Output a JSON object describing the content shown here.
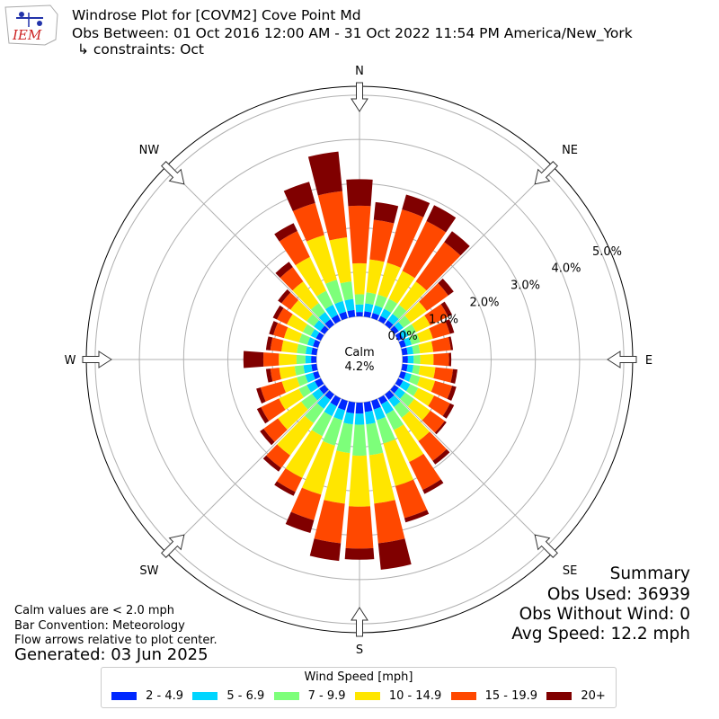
{
  "title": {
    "line1": "Windrose Plot for [COVM2] Cove Point  Md",
    "line2": "Obs Between: 01 Oct 2016 12:00 AM - 31 Oct 2022 11:54 PM America/New_York",
    "line3": "↳ constraints: Oct"
  },
  "logo_text": "IEM",
  "calm": {
    "label": "Calm",
    "value": "4.2%"
  },
  "summary": {
    "heading": "Summary",
    "obs_used": "Obs Used: 36939",
    "obs_without_wind": "Obs Without Wind: 0",
    "avg_speed": "Avg Speed: 12.2 mph"
  },
  "notes": {
    "calm_note": "Calm values are < 2.0 mph",
    "bar_convention": "Bar Convention: Meteorology",
    "flow_arrows": "Flow arrows relative to plot center."
  },
  "generated": "Generated: 03 Jun 2025",
  "legend": {
    "title": "Wind Speed [mph]",
    "items": [
      {
        "label": "2 - 4.9",
        "color": "#0028ff"
      },
      {
        "label": "5 - 6.9",
        "color": "#00d5ff"
      },
      {
        "label": "7 - 9.9",
        "color": "#7dff7a"
      },
      {
        "label": "10 - 14.9",
        "color": "#ffe600"
      },
      {
        "label": "15 - 19.9",
        "color": "#ff4800"
      },
      {
        "label": "20+",
        "color": "#800000"
      }
    ]
  },
  "chart_data": {
    "type": "windrose",
    "calm_percent": 4.2,
    "r_max_percent": 5.2,
    "ring_ticks": [
      "0.0%",
      "1.0%",
      "2.0%",
      "3.0%",
      "4.0%",
      "5.0%"
    ],
    "ring_values": [
      0,
      1,
      2,
      3,
      4,
      5
    ],
    "direction_labels": [
      "N",
      "NE",
      "E",
      "SE",
      "S",
      "SW",
      "W",
      "NW"
    ],
    "directions_deg": [
      0,
      10,
      20,
      30,
      40,
      50,
      60,
      70,
      80,
      90,
      100,
      110,
      120,
      130,
      140,
      150,
      160,
      170,
      180,
      190,
      200,
      210,
      220,
      230,
      240,
      250,
      260,
      270,
      280,
      290,
      300,
      310,
      320,
      330,
      340,
      350
    ],
    "bins": [
      "2 - 4.9",
      "5 - 6.9",
      "7 - 9.9",
      "10 - 14.9",
      "15 - 19.9",
      "20+"
    ],
    "cumulative_percent": [
      [
        0.1,
        0.27,
        0.5,
        1.2,
        2.5,
        3.1
      ],
      [
        0.12,
        0.3,
        0.55,
        1.3,
        2.2,
        2.6
      ],
      [
        0.12,
        0.3,
        0.55,
        1.3,
        2.55,
        2.9
      ],
      [
        0.12,
        0.3,
        0.55,
        1.25,
        2.5,
        2.9
      ],
      [
        0.12,
        0.3,
        0.55,
        1.2,
        2.3,
        2.6
      ],
      [
        0.12,
        0.25,
        0.45,
        0.9,
        1.5,
        1.65
      ],
      [
        0.12,
        0.25,
        0.45,
        0.8,
        1.25,
        1.35
      ],
      [
        0.12,
        0.25,
        0.45,
        0.75,
        1.15,
        1.25
      ],
      [
        0.12,
        0.25,
        0.4,
        0.7,
        1.1,
        1.15
      ],
      [
        0.12,
        0.25,
        0.4,
        0.7,
        1.05,
        1.1
      ],
      [
        0.12,
        0.25,
        0.4,
        0.75,
        1.15,
        1.25
      ],
      [
        0.12,
        0.25,
        0.45,
        0.8,
        1.2,
        1.3
      ],
      [
        0.12,
        0.3,
        0.5,
        0.9,
        1.3,
        1.4
      ],
      [
        0.12,
        0.3,
        0.55,
        1.0,
        1.4,
        1.45
      ],
      [
        0.15,
        0.35,
        0.65,
        1.3,
        1.85,
        1.95
      ],
      [
        0.15,
        0.4,
        0.8,
        1.6,
        2.3,
        2.4
      ],
      [
        0.2,
        0.45,
        1.0,
        2.0,
        2.75,
        2.85
      ],
      [
        0.22,
        0.5,
        1.2,
        2.3,
        3.2,
        3.8
      ],
      [
        0.25,
        0.5,
        1.2,
        2.35,
        3.3,
        3.55
      ],
      [
        0.25,
        0.5,
        1.15,
        2.3,
        3.2,
        3.6
      ],
      [
        0.22,
        0.45,
        1.05,
        2.2,
        2.8,
        3.1
      ],
      [
        0.2,
        0.45,
        0.95,
        2.0,
        2.35,
        2.45
      ],
      [
        0.15,
        0.4,
        0.8,
        1.7,
        2.05,
        2.15
      ],
      [
        0.15,
        0.35,
        0.65,
        1.3,
        1.7,
        1.8
      ],
      [
        0.15,
        0.35,
        0.55,
        1.05,
        1.5,
        1.6
      ],
      [
        0.12,
        0.3,
        0.5,
        0.85,
        1.35,
        1.45
      ],
      [
        0.12,
        0.3,
        0.5,
        0.85,
        1.05,
        1.15
      ],
      [
        0.12,
        0.25,
        0.45,
        0.85,
        1.2,
        1.65
      ],
      [
        0.12,
        0.25,
        0.45,
        0.8,
        1.05,
        1.15
      ],
      [
        0.12,
        0.25,
        0.45,
        0.8,
        1.05,
        1.15
      ],
      [
        0.12,
        0.25,
        0.45,
        0.85,
        1.1,
        1.2
      ],
      [
        0.12,
        0.3,
        0.5,
        0.95,
        1.2,
        1.3
      ],
      [
        0.15,
        0.35,
        0.6,
        1.2,
        1.6,
        1.75
      ],
      [
        0.15,
        0.4,
        0.75,
        1.6,
        2.25,
        2.45
      ],
      [
        0.15,
        0.4,
        0.9,
        1.95,
        2.7,
        3.2
      ],
      [
        0.15,
        0.4,
        0.8,
        1.8,
        2.85,
        3.75
      ]
    ]
  }
}
